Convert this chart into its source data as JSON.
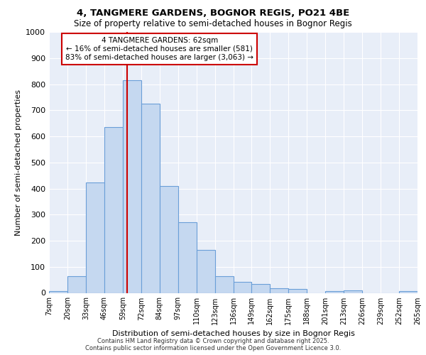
{
  "title1": "4, TANGMERE GARDENS, BOGNOR REGIS, PO21 4BE",
  "title2": "Size of property relative to semi-detached houses in Bognor Regis",
  "xlabel": "Distribution of semi-detached houses by size in Bognor Regis",
  "ylabel": "Number of semi-detached properties",
  "bar_labels": [
    "7sqm",
    "20sqm",
    "33sqm",
    "46sqm",
    "59sqm",
    "72sqm",
    "84sqm",
    "97sqm",
    "110sqm",
    "123sqm",
    "136sqm",
    "149sqm",
    "162sqm",
    "175sqm",
    "188sqm",
    "201sqm",
    "213sqm",
    "226sqm",
    "239sqm",
    "252sqm",
    "265sqm"
  ],
  "bar_values": [
    7,
    63,
    422,
    635,
    814,
    725,
    410,
    270,
    165,
    63,
    42,
    35,
    18,
    15,
    0,
    8,
    10,
    0,
    0,
    7
  ],
  "bar_color": "#c5d8f0",
  "bar_edge_color": "#6a9fd8",
  "vline_color": "#cc0000",
  "annotation_title": "4 TANGMERE GARDENS: 62sqm",
  "annotation_line1": "← 16% of semi-detached houses are smaller (581)",
  "annotation_line2": "83% of semi-detached houses are larger (3,063) →",
  "annotation_box_color": "#ffffff",
  "annotation_box_edge": "#cc0000",
  "ylim": [
    0,
    1000
  ],
  "yticks": [
    0,
    100,
    200,
    300,
    400,
    500,
    600,
    700,
    800,
    900,
    1000
  ],
  "footer1": "Contains HM Land Registry data © Crown copyright and database right 2025.",
  "footer2": "Contains public sector information licensed under the Open Government Licence 3.0.",
  "bg_color": "#e8eef8",
  "fig_bg": "#ffffff",
  "grid_color": "#ffffff"
}
